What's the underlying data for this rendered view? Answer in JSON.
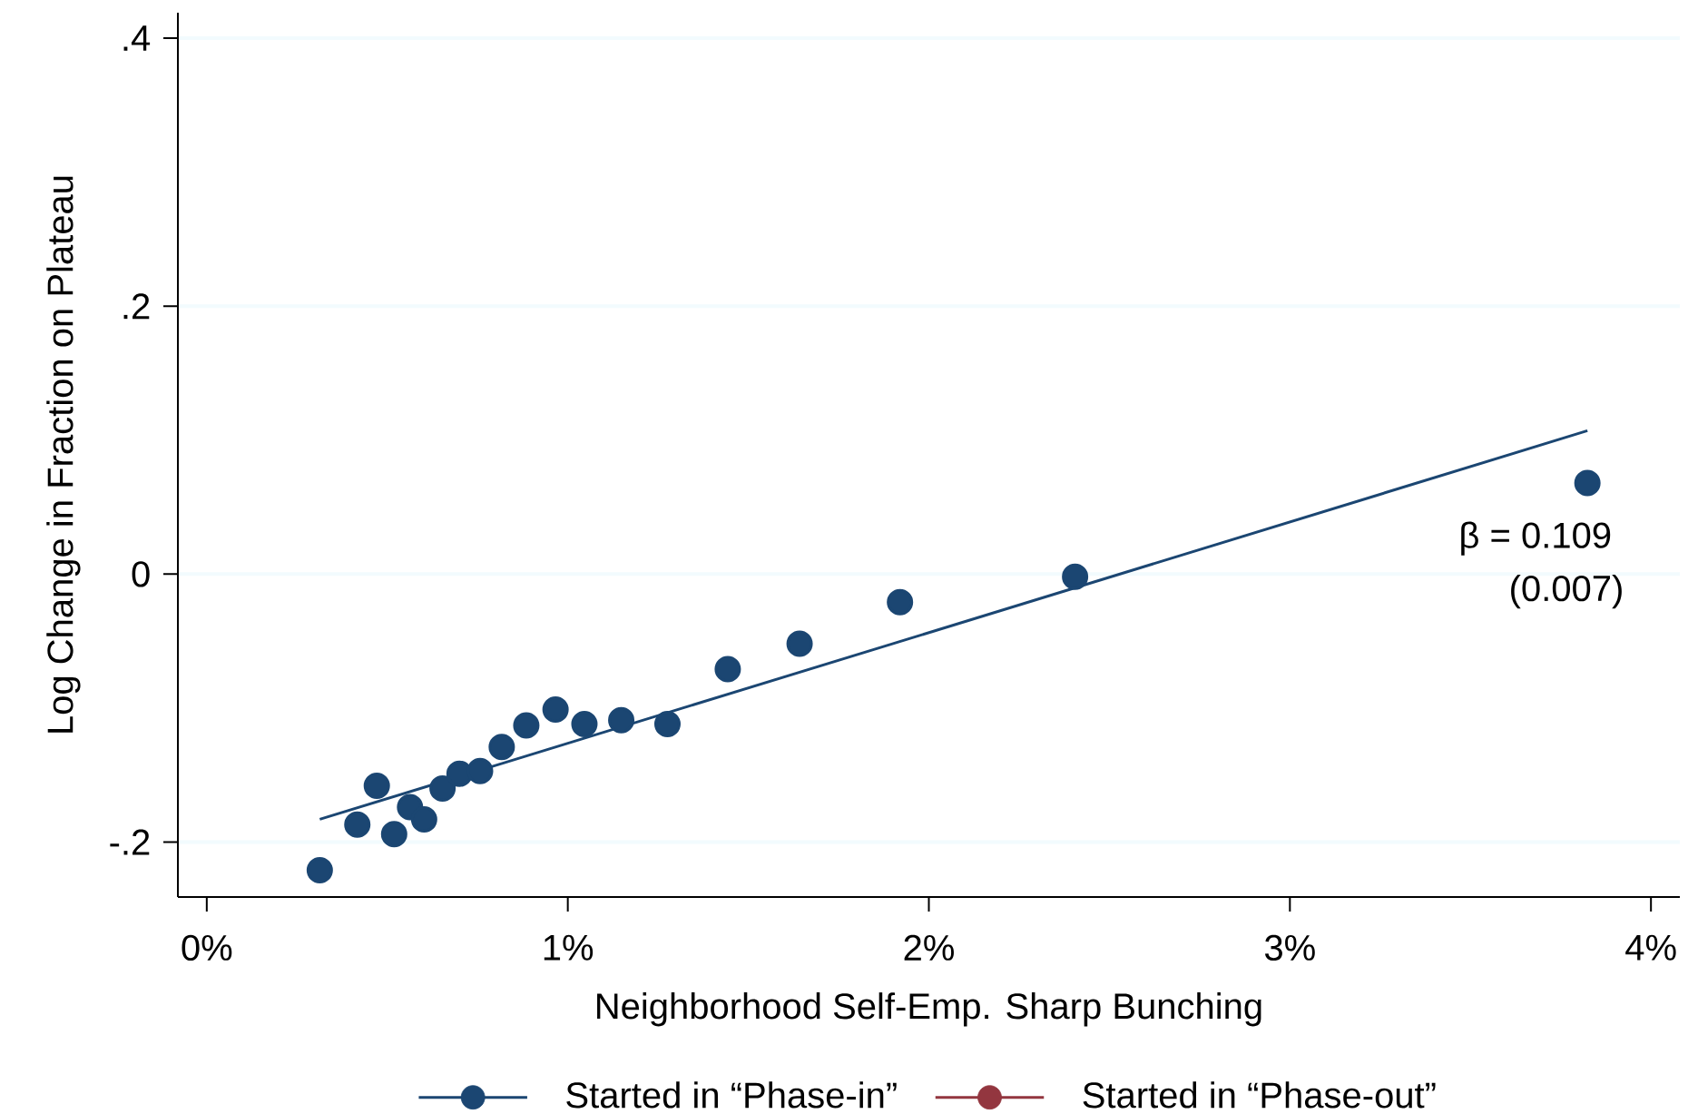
{
  "chart_data": {
    "type": "scatter",
    "xlabel": "Neighborhood Self-Emp. Sharp Bunching",
    "ylabel": "Log Change in Fraction on Plateau",
    "x": [
      0.313,
      0.417,
      0.471,
      0.519,
      0.563,
      0.602,
      0.653,
      0.7,
      0.757,
      0.817,
      0.885,
      0.966,
      1.046,
      1.148,
      1.276,
      1.443,
      1.642,
      1.92,
      2.405,
      3.824
    ],
    "series": [
      {
        "name": "Started in “Phase-in”",
        "color": "#1b4672",
        "marker": "circle",
        "values": [
          -0.221,
          -0.187,
          -0.158,
          -0.194,
          -0.174,
          -0.183,
          -0.16,
          -0.149,
          -0.147,
          -0.129,
          -0.113,
          -0.101,
          -0.112,
          -0.109,
          -0.112,
          -0.071,
          -0.052,
          -0.021,
          -0.002,
          0.068
        ]
      },
      {
        "name": "Started in “Phase-out”",
        "color": "#93363f",
        "marker": "circle",
        "values": [
          null,
          null,
          null,
          null,
          null,
          null,
          null,
          null,
          null,
          null,
          null,
          null,
          null,
          null,
          null,
          null,
          null,
          null,
          null,
          null
        ]
      },
      {
        "type": "line",
        "color": "#1b4672",
        "marker": "none",
        "x": [
          0.313,
          3.824
        ],
        "values": [
          -0.183,
          0.107
        ]
      }
    ],
    "xlim": [
      -0.08,
      4.08
    ],
    "ylim": [
      -0.241,
      0.419
    ],
    "xticks": [
      {
        "value": 0,
        "label": "0%"
      },
      {
        "value": 1,
        "label": "1%"
      },
      {
        "value": 2,
        "label": "2%"
      },
      {
        "value": 3,
        "label": "3%"
      },
      {
        "value": 4,
        "label": "4%"
      }
    ],
    "yticks": [
      {
        "value": -0.2,
        "label": "-.2"
      },
      0,
      {
        "value": 0.2,
        "label": ".2"
      },
      {
        "value": 0.4,
        "label": ".4"
      }
    ],
    "grid": "y",
    "legend": "bottom",
    "annotations": [
      "β = 0.109",
      "(0.007)"
    ]
  }
}
